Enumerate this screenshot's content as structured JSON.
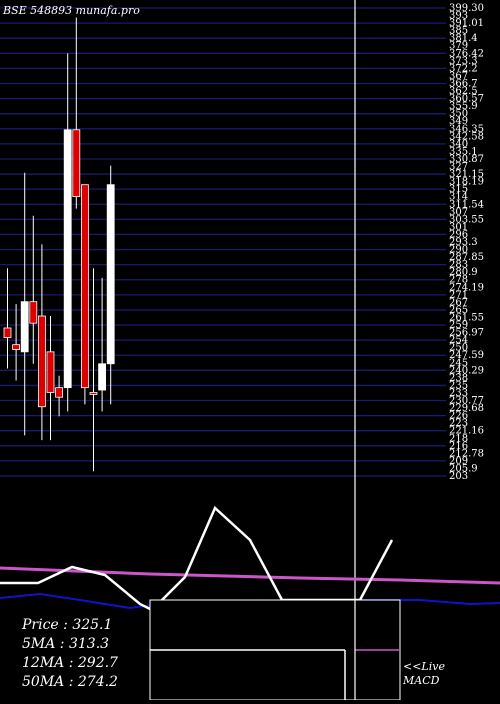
{
  "title": "BSE 548893 munafa.pro",
  "stats": {
    "price": "Price   : 325.1",
    "ma5": "5MA : 313.3",
    "ma12": "12MA : 292.7",
    "ma50": "50MA : 274.2"
  },
  "macd_label_1": "<<Live",
  "macd_label_2": "MACD",
  "colors": {
    "grid": "#1a1a6e",
    "bull": "#ffffff",
    "bear": "#dd0000",
    "ma_pink": "#cc55cc",
    "ma_blue": "#1111cc",
    "macd_line": "#ffffff"
  },
  "chart_data": {
    "type": "candlestick",
    "title": "BSE 548893 munafa.pro",
    "ylim": [
      203,
      399
    ],
    "y_tick_labels": [
      "399.30",
      "393",
      "391.01",
      "385",
      "381.4",
      "379",
      "376.42",
      "373.3",
      "372.2",
      "367",
      "366.7",
      "362.5",
      "360.57",
      "355.9",
      "350",
      "349",
      "346.35",
      "342.58",
      "340",
      "335.1",
      "330.87",
      "327",
      "321.15",
      "318.19",
      "315",
      "314",
      "311.54",
      "307",
      "303.55",
      "301",
      "296",
      "293.3",
      "290",
      "287.85",
      "283",
      "280.9",
      "278",
      "274.19",
      "271",
      "267",
      "265",
      "261.55",
      "259",
      "256.97",
      "254",
      "250",
      "247.59",
      "245",
      "240.29",
      "238",
      "235",
      "233",
      "230.77",
      "229.68",
      "226",
      "223",
      "221.16",
      "218",
      "216",
      "212.78",
      "209",
      "205.9",
      "203"
    ],
    "candles": [
      {
        "o": 265,
        "h": 290,
        "l": 248,
        "c": 261,
        "dir": "down"
      },
      {
        "o": 258,
        "h": 275,
        "l": 243,
        "c": 256,
        "dir": "down"
      },
      {
        "o": 255,
        "h": 330,
        "l": 220,
        "c": 276,
        "dir": "up"
      },
      {
        "o": 276,
        "h": 312,
        "l": 250,
        "c": 267,
        "dir": "down"
      },
      {
        "o": 270,
        "h": 300,
        "l": 218,
        "c": 232,
        "dir": "down"
      },
      {
        "o": 255,
        "h": 270,
        "l": 218,
        "c": 238,
        "dir": "down"
      },
      {
        "o": 240,
        "h": 245,
        "l": 228,
        "c": 236,
        "dir": "down"
      },
      {
        "o": 240,
        "h": 380,
        "l": 230,
        "c": 348,
        "dir": "up"
      },
      {
        "o": 348,
        "h": 395,
        "l": 315,
        "c": 320,
        "dir": "down"
      },
      {
        "o": 325,
        "h": 325,
        "l": 233,
        "c": 240,
        "dir": "down"
      },
      {
        "o": 238,
        "h": 290,
        "l": 205,
        "c": 238,
        "dir": "down"
      },
      {
        "o": 239,
        "h": 286,
        "l": 230,
        "c": 250,
        "dir": "up"
      },
      {
        "o": 250,
        "h": 333,
        "l": 233,
        "c": 325,
        "dir": "up"
      }
    ]
  }
}
